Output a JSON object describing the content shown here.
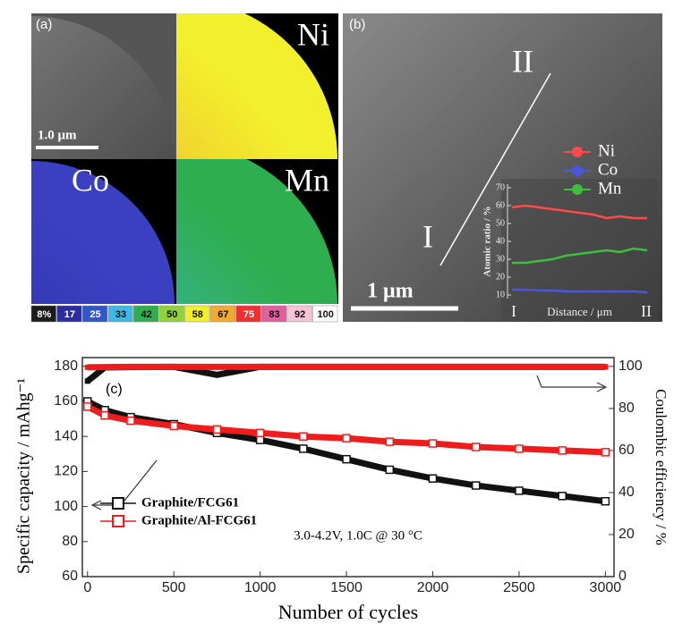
{
  "figure": {
    "panel_a": {
      "label": "(a)",
      "maps": [
        "Ni",
        "Co",
        "Mn"
      ],
      "scale_bar": "1.0 μm",
      "colorbar": {
        "labels": [
          "8%",
          "17",
          "25",
          "33",
          "42",
          "50",
          "58",
          "67",
          "75",
          "83",
          "92",
          "100"
        ],
        "colors": [
          "#1c1c1c",
          "#2a2ca0",
          "#3057c8",
          "#3fb8e6",
          "#2fae4f",
          "#8fd23a",
          "#f2ef2c",
          "#f2a92e",
          "#ee3030",
          "#e0609e",
          "#f4c4d6",
          "#ffffff"
        ]
      }
    },
    "panel_b": {
      "label": "(b)",
      "scale_bar": "1 μm",
      "line_start": "I",
      "line_end": "II"
    }
  },
  "chart_data": [
    {
      "type": "line",
      "ylabel": "Atomic ratio / %",
      "xlabel": "Distance / μm",
      "x_start_label": "I",
      "x_end_label": "II",
      "ylim": [
        10,
        70
      ],
      "yticks": [
        10,
        20,
        30,
        40,
        50,
        60,
        70
      ],
      "series": [
        {
          "name": "Ni",
          "color": "#ff4a4a",
          "values": [
            59,
            60,
            59,
            58,
            57,
            56,
            55,
            53,
            54,
            53,
            53
          ]
        },
        {
          "name": "Co",
          "color": "#4a56e0",
          "values": [
            13,
            13,
            12.5,
            12.5,
            12,
            12,
            12,
            12,
            12,
            12,
            11.5
          ]
        },
        {
          "name": "Mn",
          "color": "#3cc03c",
          "values": [
            28,
            28,
            29,
            30,
            32,
            33,
            34,
            35,
            34,
            36,
            35
          ]
        }
      ]
    },
    {
      "type": "scatter",
      "label": "(c)",
      "annotation": "3.0-4.2V, 1.0C @ 30 °C",
      "xlabel": "Number of cycles",
      "ylabel": "Specific capacity / mAhg⁻¹",
      "y2label": "Coulombic efficiency / %",
      "x": [
        0,
        100,
        250,
        500,
        750,
        1000,
        1250,
        1500,
        1750,
        2000,
        2250,
        2500,
        2750,
        3000
      ],
      "xlim": [
        -30,
        3050
      ],
      "xticks": [
        0,
        500,
        1000,
        1500,
        2000,
        2500,
        3000
      ],
      "ylim": [
        60,
        185
      ],
      "yticks": [
        60,
        80,
        100,
        120,
        140,
        160,
        180
      ],
      "y2lim": [
        0,
        104.2
      ],
      "y2ticks": [
        0,
        20,
        40,
        60,
        80,
        100
      ],
      "series": [
        {
          "name": "Graphite/FCG61",
          "color": "#111111",
          "values": [
            160,
            155,
            151,
            147,
            142,
            138,
            133,
            127,
            121,
            116,
            112,
            109,
            106,
            103
          ],
          "efficiency": [
            93,
            99.5,
            99.7,
            99.8,
            96,
            99.8,
            99.8,
            99.8,
            99.8,
            99.8,
            99.8,
            99.8,
            99.8,
            99.8
          ]
        },
        {
          "name": "Graphite/Al-FCG61",
          "color": "#ee1c1c",
          "values": [
            157,
            152,
            149,
            146,
            144,
            142,
            140,
            139,
            137,
            136,
            134,
            133,
            132,
            131
          ],
          "efficiency": [
            99.6,
            99.7,
            99.8,
            99.8,
            99.8,
            99.8,
            99.8,
            99.8,
            99.8,
            99.8,
            99.8,
            99.8,
            99.8,
            99.8
          ]
        }
      ]
    }
  ]
}
